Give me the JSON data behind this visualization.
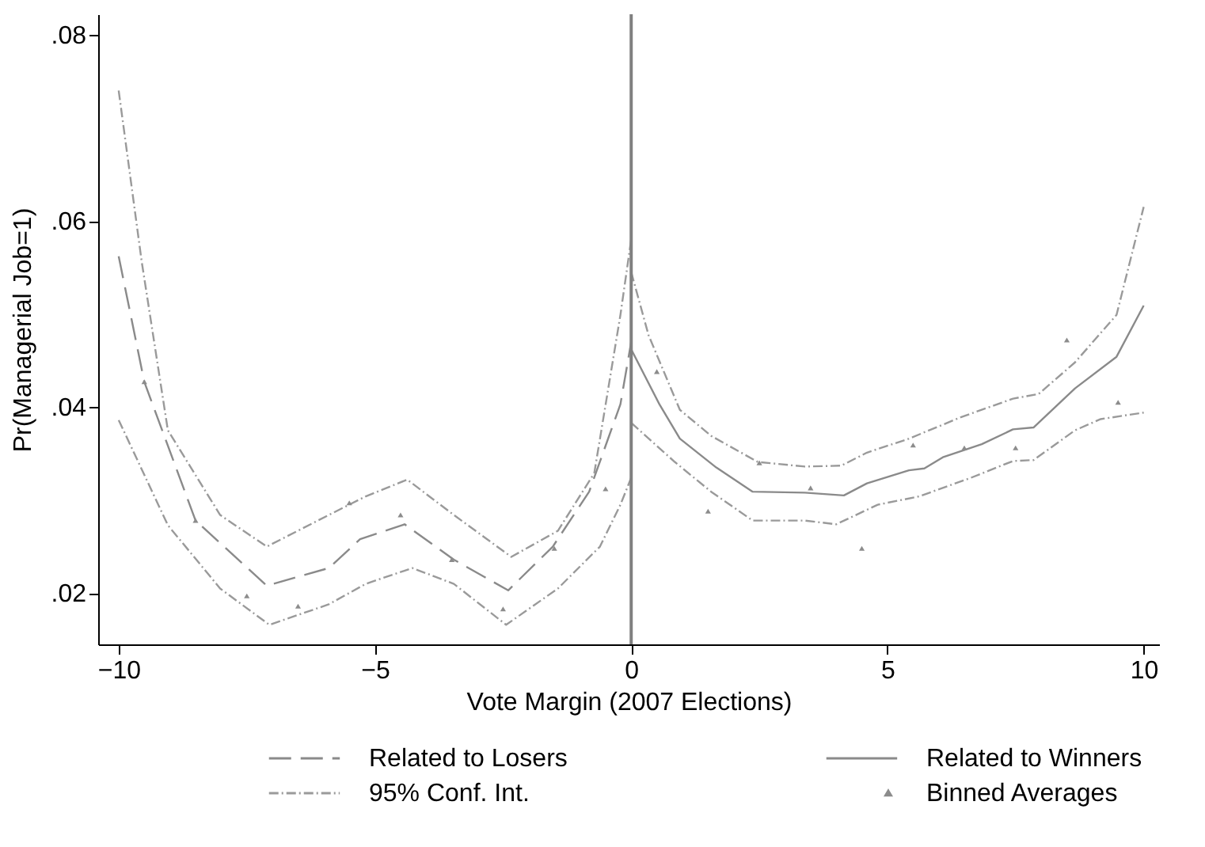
{
  "chart_data": {
    "type": "line",
    "xlabel": "Vote Margin (2007 Elections)",
    "ylabel": "Pr(Managerial Job=1)",
    "xlim": [
      -10.4,
      10.3
    ],
    "xticks": [
      -10,
      -5,
      0,
      5,
      10
    ],
    "ylim": [
      0.0145,
      0.0822
    ],
    "yticks": [
      {
        "value": 0.02,
        "label": ".02"
      },
      {
        "value": 0.04,
        "label": ".04"
      },
      {
        "value": 0.06,
        "label": ".06"
      },
      {
        "value": 0.08,
        "label": ".08"
      }
    ],
    "grid": false,
    "legend": "bottom",
    "ref_lines": [
      {
        "axis": "x",
        "value": 0,
        "color": "#808080",
        "line_style": "solid"
      }
    ],
    "series": [
      {
        "name": "Related to Losers",
        "line_style": "dashed",
        "color": "#8a8a8a",
        "x": [
          -10,
          -9.5,
          -8.5,
          -7.11,
          -5.9,
          -5.29,
          -4.42,
          -3.46,
          -2.4,
          -1.53,
          -0.82,
          -0.21,
          0
        ],
        "values": [
          0.0562,
          0.0427,
          0.0278,
          0.0208,
          0.0227,
          0.0258,
          0.0274,
          0.0236,
          0.0203,
          0.025,
          0.0309,
          0.0403,
          0.047
        ]
      },
      {
        "name": "Related to Winners",
        "line_style": "solid",
        "color": "#8a8a8a",
        "x": [
          0,
          0.55,
          0.95,
          1.66,
          2.37,
          3.39,
          4.15,
          4.6,
          5.42,
          5.72,
          6.08,
          6.84,
          7.45,
          7.85,
          8.66,
          9.47,
          10
        ],
        "values": [
          0.0462,
          0.0403,
          0.0366,
          0.0335,
          0.0309,
          0.0308,
          0.0305,
          0.0318,
          0.0332,
          0.0334,
          0.0346,
          0.036,
          0.0376,
          0.0378,
          0.042,
          0.0454,
          0.0509
        ]
      },
      {
        "name": "95% Conf. Int.",
        "line_style": "dotted",
        "color": "#9a9a9a",
        "x": [
          -10,
          -9.55,
          -9.04,
          -8.02,
          -7.11,
          -5.9,
          -5.18,
          -4.37,
          -3.46,
          -2.34,
          -1.43,
          -0.72,
          -0.21,
          0
        ],
        "values": [
          0.074,
          0.0556,
          0.0375,
          0.0284,
          0.025,
          0.0284,
          0.0304,
          0.0322,
          0.0284,
          0.0239,
          0.0267,
          0.0329,
          0.0499,
          0.058
        ]
      },
      {
        "line_style": "dotted",
        "color": "#9a9a9a",
        "x": [
          -10,
          -9.04,
          -8.02,
          -7.06,
          -5.9,
          -5.18,
          -4.27,
          -3.46,
          -2.44,
          -1.43,
          -0.61,
          -0.21,
          0
        ],
        "values": [
          0.0386,
          0.0273,
          0.0205,
          0.0166,
          0.0188,
          0.021,
          0.0227,
          0.021,
          0.0166,
          0.0205,
          0.025,
          0.0295,
          0.0324
        ]
      },
      {
        "line_style": "dotted",
        "color": "#9a9a9a",
        "x": [
          0,
          0.34,
          0.95,
          1.56,
          2.47,
          3.39,
          4.1,
          4.6,
          5.42,
          6.43,
          7.45,
          7.95,
          8.66,
          9.47,
          10
        ],
        "values": [
          0.0545,
          0.0477,
          0.0397,
          0.0369,
          0.0341,
          0.0336,
          0.0337,
          0.0351,
          0.0366,
          0.0389,
          0.0409,
          0.0414,
          0.0448,
          0.0499,
          0.0615
        ]
      },
      {
        "line_style": "dotted",
        "color": "#9a9a9a",
        "x": [
          0,
          0.85,
          1.56,
          2.37,
          3.39,
          4.0,
          4.81,
          5.62,
          6.63,
          7.45,
          7.85,
          8.66,
          9.16,
          10
        ],
        "values": [
          0.0383,
          0.0341,
          0.0309,
          0.0278,
          0.0278,
          0.0274,
          0.0295,
          0.0304,
          0.0324,
          0.0342,
          0.0343,
          0.0375,
          0.0387,
          0.0394
        ]
      },
      {
        "name": "Binned Averages",
        "type": "scatter",
        "marker": "triangle",
        "color": "#8c8c8c",
        "x": [
          -9.5,
          -8.5,
          -7.5,
          -6.5,
          -5.5,
          -4.5,
          -3.5,
          -2.5,
          -1.5,
          -0.5,
          0.5,
          1.5,
          2.5,
          3.5,
          4.5,
          5.5,
          6.5,
          7.5,
          8.5,
          9.5
        ],
        "values": [
          0.0427,
          0.0278,
          0.0197,
          0.0186,
          0.0297,
          0.0284,
          0.0236,
          0.0183,
          0.0248,
          0.0312,
          0.0438,
          0.0288,
          0.034,
          0.0313,
          0.0248,
          0.0359,
          0.0356,
          0.0356,
          0.0472,
          0.0405
        ]
      }
    ]
  }
}
